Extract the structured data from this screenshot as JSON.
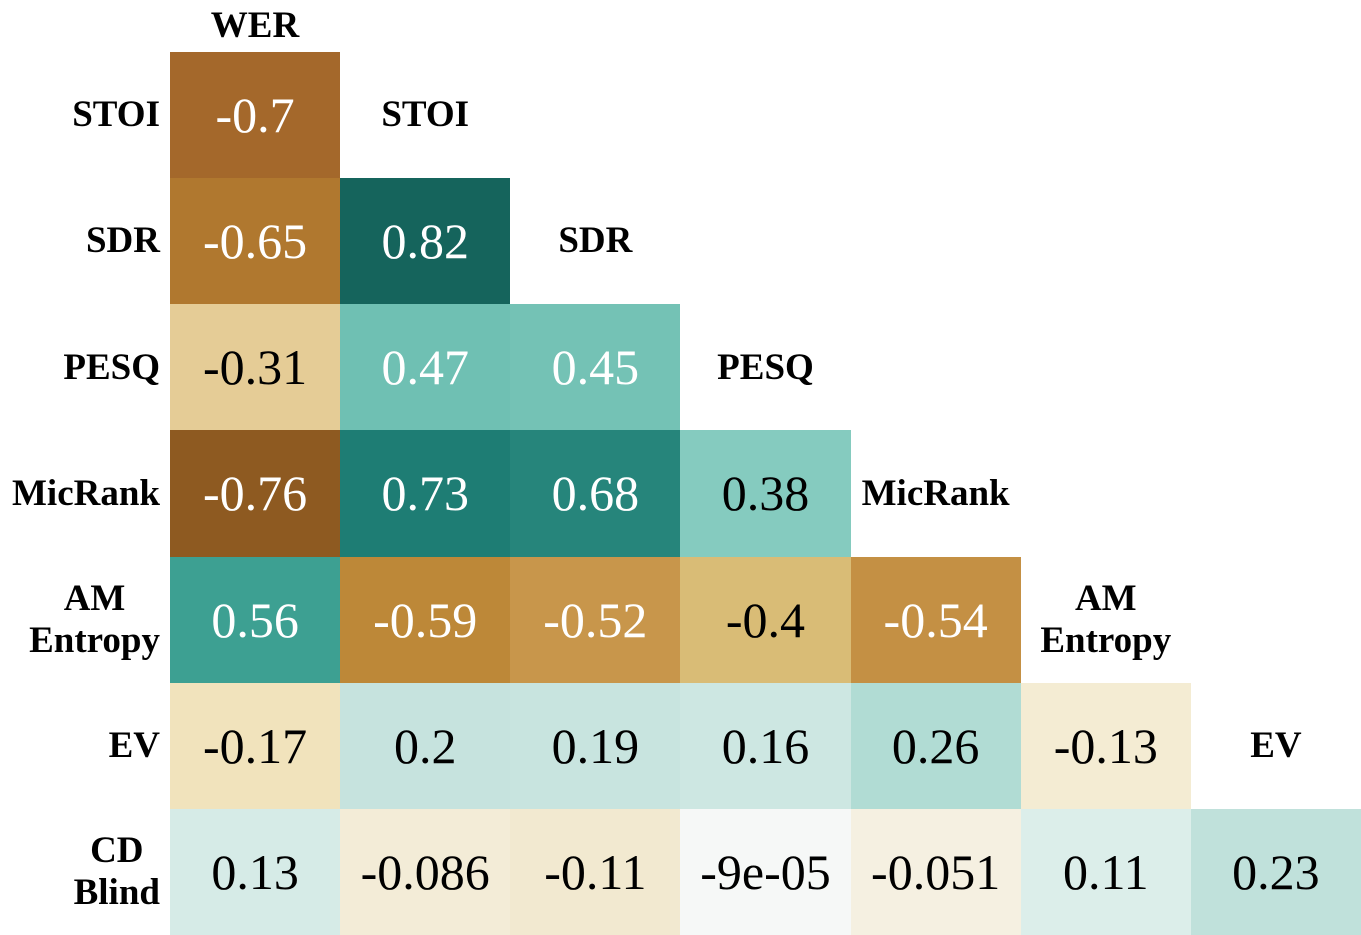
{
  "figure": {
    "background": "#ffffff"
  },
  "chart_data": {
    "type": "heatmap",
    "subtype": "lower-triangular-correlation-matrix",
    "title": "",
    "xlabel": "",
    "ylabel": "",
    "grid": false,
    "legend_position": "none",
    "value_range": [
      -1,
      1
    ],
    "colormap": {
      "negative_end": "#8e5a21",
      "midpoint": "#f6f8f7",
      "positive_end": "#15645c"
    },
    "metrics": [
      "WER",
      "STOI",
      "SDR",
      "PESQ",
      "MicRank",
      "AM Entropy",
      "EV",
      "CD Blind"
    ],
    "top_header": "WER",
    "rows": [
      {
        "label": "STOI",
        "label_lines": "STOI",
        "diagonal_label_lines": "STOI",
        "cells": [
          {
            "column": "WER",
            "value": -0.7,
            "text": "-0.7",
            "bg": "#a4682b",
            "fg": "#ffffff"
          }
        ]
      },
      {
        "label": "SDR",
        "label_lines": "SDR",
        "diagonal_label_lines": "SDR",
        "cells": [
          {
            "column": "WER",
            "value": -0.65,
            "text": "-0.65",
            "bg": "#b0782f",
            "fg": "#ffffff"
          },
          {
            "column": "STOI",
            "value": 0.82,
            "text": "0.82",
            "bg": "#15645c",
            "fg": "#ffffff"
          }
        ]
      },
      {
        "label": "PESQ",
        "label_lines": "PESQ",
        "diagonal_label_lines": "PESQ",
        "cells": [
          {
            "column": "WER",
            "value": -0.31,
            "text": "-0.31",
            "bg": "#e5cc96",
            "fg": "#000000"
          },
          {
            "column": "STOI",
            "value": 0.47,
            "text": "0.47",
            "bg": "#6fc0b3",
            "fg": "#ffffff"
          },
          {
            "column": "SDR",
            "value": 0.45,
            "text": "0.45",
            "bg": "#74c2b5",
            "fg": "#ffffff"
          }
        ]
      },
      {
        "label": "MicRank",
        "label_lines": "MicRank",
        "diagonal_label_lines": "MicRank",
        "cells": [
          {
            "column": "WER",
            "value": -0.76,
            "text": "-0.76",
            "bg": "#8e5a21",
            "fg": "#ffffff"
          },
          {
            "column": "STOI",
            "value": 0.73,
            "text": "0.73",
            "bg": "#1e7d74",
            "fg": "#ffffff"
          },
          {
            "column": "SDR",
            "value": 0.68,
            "text": "0.68",
            "bg": "#26857b",
            "fg": "#ffffff"
          },
          {
            "column": "PESQ",
            "value": 0.38,
            "text": "0.38",
            "bg": "#85cbbf",
            "fg": "#000000"
          }
        ]
      },
      {
        "label": "AM Entropy",
        "label_lines": "AM\nEntropy",
        "diagonal_label_lines": "AM\nEntropy",
        "cells": [
          {
            "column": "WER",
            "value": 0.56,
            "text": "0.56",
            "bg": "#3da092",
            "fg": "#ffffff"
          },
          {
            "column": "STOI",
            "value": -0.59,
            "text": "-0.59",
            "bg": "#bd8838",
            "fg": "#ffffff"
          },
          {
            "column": "SDR",
            "value": -0.52,
            "text": "-0.52",
            "bg": "#c8964b",
            "fg": "#ffffff"
          },
          {
            "column": "PESQ",
            "value": -0.4,
            "text": "-0.4",
            "bg": "#d9bc76",
            "fg": "#000000"
          },
          {
            "column": "MicRank",
            "value": -0.54,
            "text": "-0.54",
            "bg": "#c49044",
            "fg": "#ffffff"
          }
        ]
      },
      {
        "label": "EV",
        "label_lines": "EV",
        "diagonal_label_lines": "EV",
        "cells": [
          {
            "column": "WER",
            "value": -0.17,
            "text": "-0.17",
            "bg": "#f1e3bc",
            "fg": "#000000"
          },
          {
            "column": "STOI",
            "value": 0.2,
            "text": "0.2",
            "bg": "#c6e3de",
            "fg": "#000000"
          },
          {
            "column": "SDR",
            "value": 0.19,
            "text": "0.19",
            "bg": "#c8e4df",
            "fg": "#000000"
          },
          {
            "column": "PESQ",
            "value": 0.16,
            "text": "0.16",
            "bg": "#cde7e2",
            "fg": "#000000"
          },
          {
            "column": "MicRank",
            "value": 0.26,
            "text": "0.26",
            "bg": "#b1dcd4",
            "fg": "#000000"
          },
          {
            "column": "AM Entropy",
            "value": -0.13,
            "text": "-0.13",
            "bg": "#f4ecd3",
            "fg": "#000000"
          }
        ]
      },
      {
        "label": "CD Blind",
        "label_lines": "CD\nBlind",
        "diagonal_label_lines": "",
        "cells": [
          {
            "column": "WER",
            "value": 0.13,
            "text": "0.13",
            "bg": "#d6ebe7",
            "fg": "#000000"
          },
          {
            "column": "STOI",
            "value": -0.086,
            "text": "-0.086",
            "bg": "#f3ecd7",
            "fg": "#000000"
          },
          {
            "column": "SDR",
            "value": -0.11,
            "text": "-0.11",
            "bg": "#f2e9d0",
            "fg": "#000000"
          },
          {
            "column": "PESQ",
            "value": -9e-05,
            "text": "-9e-05",
            "bg": "#f6f8f7",
            "fg": "#000000"
          },
          {
            "column": "MicRank",
            "value": -0.051,
            "text": "-0.051",
            "bg": "#f5f0e1",
            "fg": "#000000"
          },
          {
            "column": "AM Entropy",
            "value": 0.11,
            "text": "0.11",
            "bg": "#dceeea",
            "fg": "#000000"
          },
          {
            "column": "EV",
            "value": 0.23,
            "text": "0.23",
            "bg": "#c0e1db",
            "fg": "#000000"
          }
        ]
      }
    ]
  }
}
